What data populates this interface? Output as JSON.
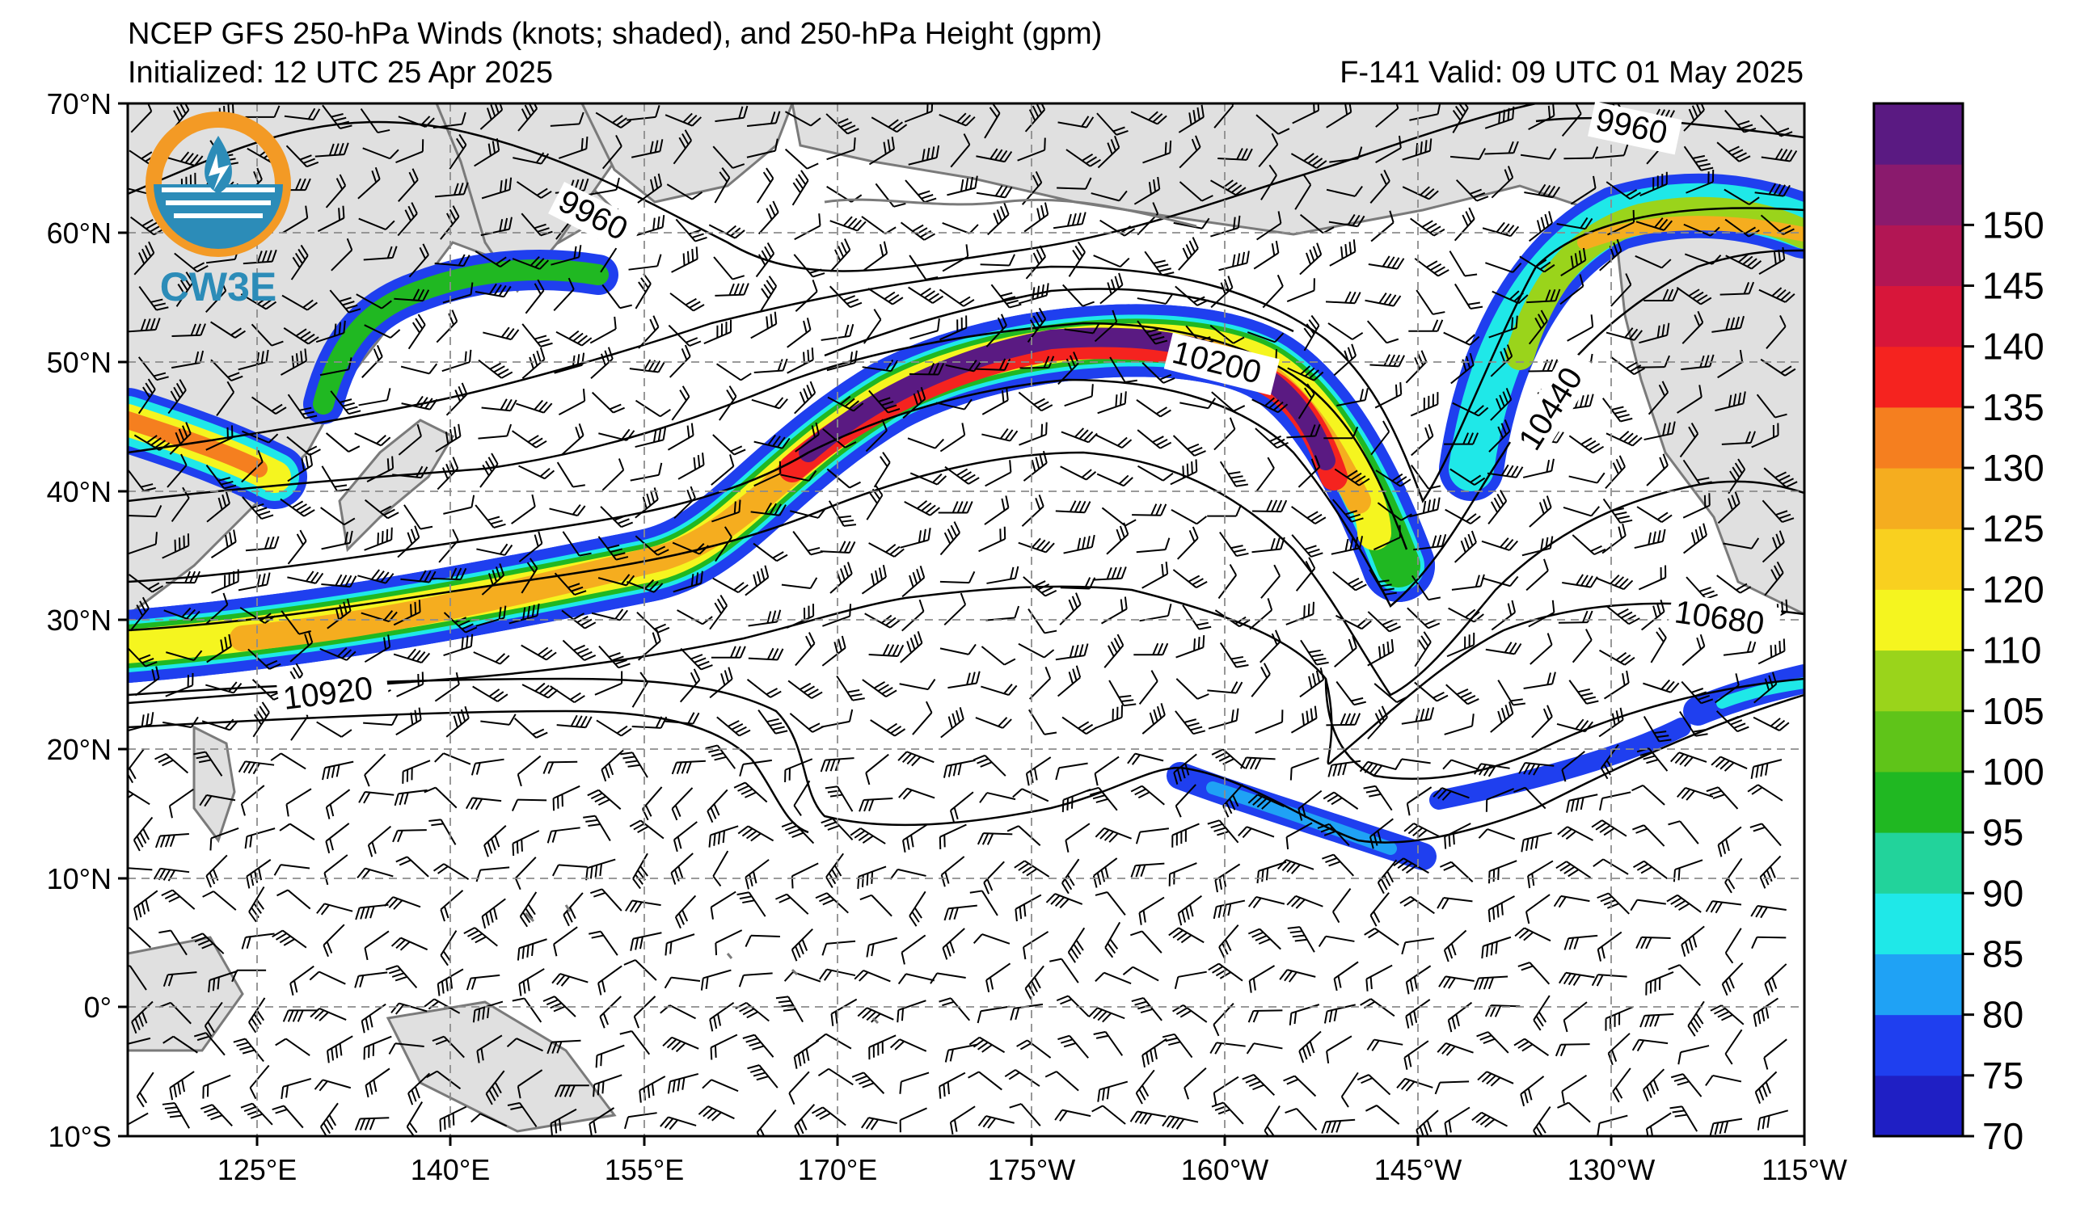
{
  "header": {
    "title": "NCEP GFS 250-hPa Winds (knots; shaded), and 250-hPa Height (gpm)",
    "initialized": "Initialized: 12 UTC 25 Apr 2025",
    "valid": "F-141  Valid: 09 UTC 01 May 2025"
  },
  "logo": {
    "text": "CW3E",
    "icon": "cw3e-logo-icon"
  },
  "map": {
    "lat_labels": [
      "70°N",
      "60°N",
      "50°N",
      "40°N",
      "30°N",
      "20°N",
      "10°N",
      "0°",
      "10°S"
    ],
    "lon_labels": [
      "125°E",
      "140°E",
      "155°E",
      "170°E",
      "175°W",
      "160°W",
      "145°W",
      "130°W",
      "115°W"
    ],
    "contour_labels": [
      "9960",
      "9960",
      "10200",
      "10440",
      "10680",
      "10920"
    ]
  },
  "colorbar": {
    "ticks": [
      "70",
      "75",
      "80",
      "85",
      "90",
      "95",
      "100",
      "105",
      "110",
      "120",
      "125",
      "130",
      "135",
      "140",
      "145",
      "150"
    ],
    "colors": [
      "#1f1fc4",
      "#1f3fef",
      "#1fa2f5",
      "#1fe8e8",
      "#22d39b",
      "#20b822",
      "#5fc419",
      "#9ad41b",
      "#f5f51f",
      "#f9d01f",
      "#f5ad1f",
      "#f57f1f",
      "#f5231f",
      "#d8163a",
      "#b21654",
      "#8a1a6d",
      "#5a1a82"
    ]
  },
  "legend_colors": {
    "land": "#e0e0e0",
    "coast": "#7a7a7a",
    "grid": "#8c8c8c",
    "contour": "#000000",
    "logo_orange": "#f39a25",
    "logo_blue": "#2c8cb8"
  }
}
